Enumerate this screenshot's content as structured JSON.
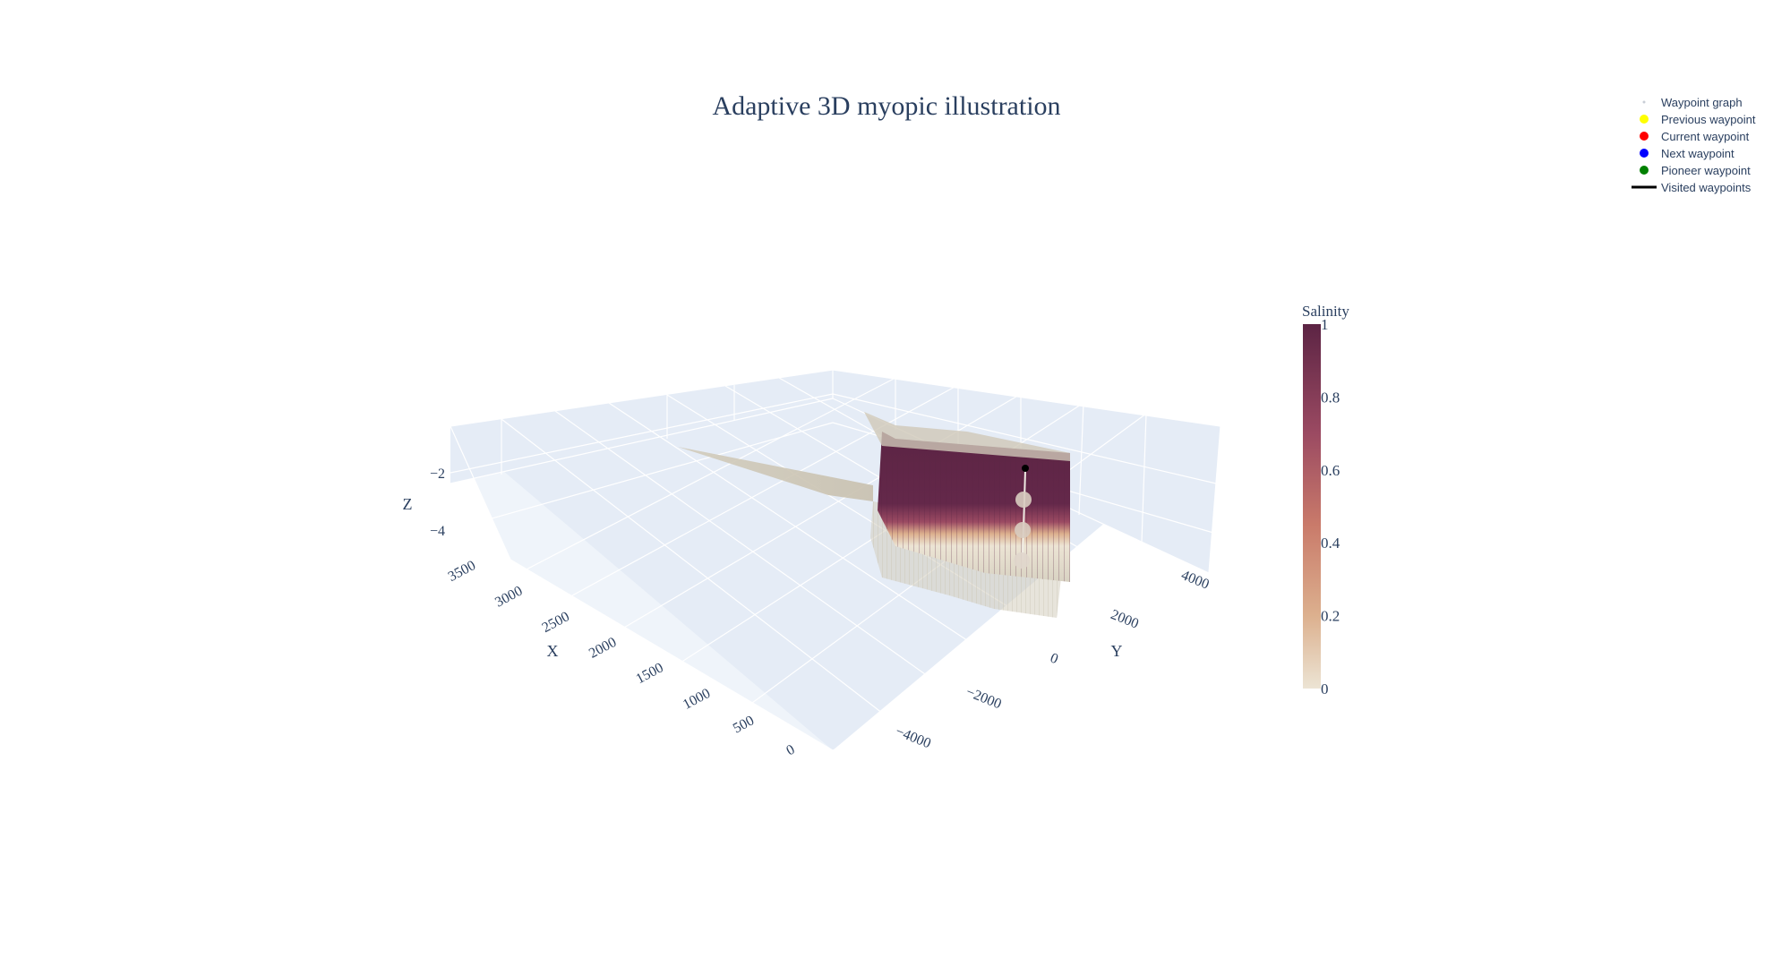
{
  "chart_data": {
    "type": "3d-volume",
    "title": "Adaptive 3D myopic illustration",
    "axes": {
      "x": {
        "label": "X",
        "range": [
          0,
          3600
        ],
        "ticks": [
          0,
          500,
          1000,
          1500,
          2000,
          2500,
          3000,
          3500
        ]
      },
      "y": {
        "label": "Y",
        "range": [
          -5000,
          5000
        ],
        "ticks": [
          -4000,
          -2000,
          0,
          2000,
          4000
        ]
      },
      "z": {
        "label": "Z",
        "range": [
          -5,
          0
        ],
        "ticks": [
          -2,
          -4
        ]
      }
    },
    "colorbar": {
      "title": "Salinity",
      "range": [
        0,
        1
      ],
      "ticks": [
        0,
        0.2,
        0.4,
        0.6,
        0.8,
        1
      ],
      "colors": [
        "#ece4d4",
        "#dcb08e",
        "#c97a6a",
        "#9b4a62",
        "#5c2444"
      ]
    },
    "legend": {
      "position": "top-right",
      "items": [
        {
          "label": "Waypoint graph",
          "marker": "dot-small",
          "color": "#c8cdd6"
        },
        {
          "label": "Previous waypoint",
          "marker": "dot",
          "color": "#ffff00"
        },
        {
          "label": "Current waypoint",
          "marker": "dot",
          "color": "#ff0000"
        },
        {
          "label": "Next waypoint",
          "marker": "dot",
          "color": "#0000ff"
        },
        {
          "label": "Pioneer waypoint",
          "marker": "dot",
          "color": "#008000"
        },
        {
          "label": "Visited waypoints",
          "marker": "line",
          "color": "#000000"
        }
      ]
    }
  }
}
